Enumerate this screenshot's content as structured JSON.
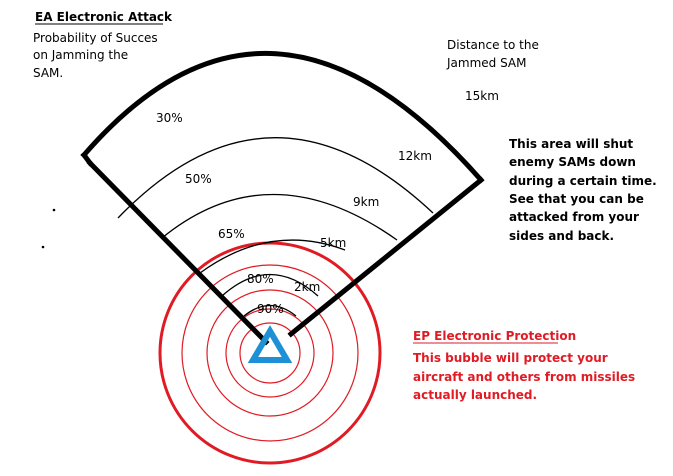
{
  "colors": {
    "ink": "#000000",
    "protection": "#e01b24",
    "aircraft": "#1e90d6"
  },
  "icons": {
    "aircraft": "triangle-icon"
  },
  "ea": {
    "title": "EA Electronic Attack",
    "caption": [
      "Probability of Succes",
      "on Jamming the",
      "SAM."
    ]
  },
  "distance": {
    "caption": [
      "Distance to the",
      "Jammed SAM"
    ]
  },
  "ranges": [
    "15km",
    "12km",
    "9km",
    "5km",
    "2km"
  ],
  "probabilities": [
    "30%",
    "50%",
    "65%",
    "80%",
    "90%"
  ],
  "attack_note": [
    "This area will shut",
    "enemy SAMs down",
    "during a certain time.",
    "See that you can be",
    "attacked from your",
    "sides and back."
  ],
  "ep": {
    "title": "EP Electronic Protection",
    "note": [
      "This bubble will protect your",
      "aircraft and others from missiles",
      "actually launched."
    ]
  }
}
